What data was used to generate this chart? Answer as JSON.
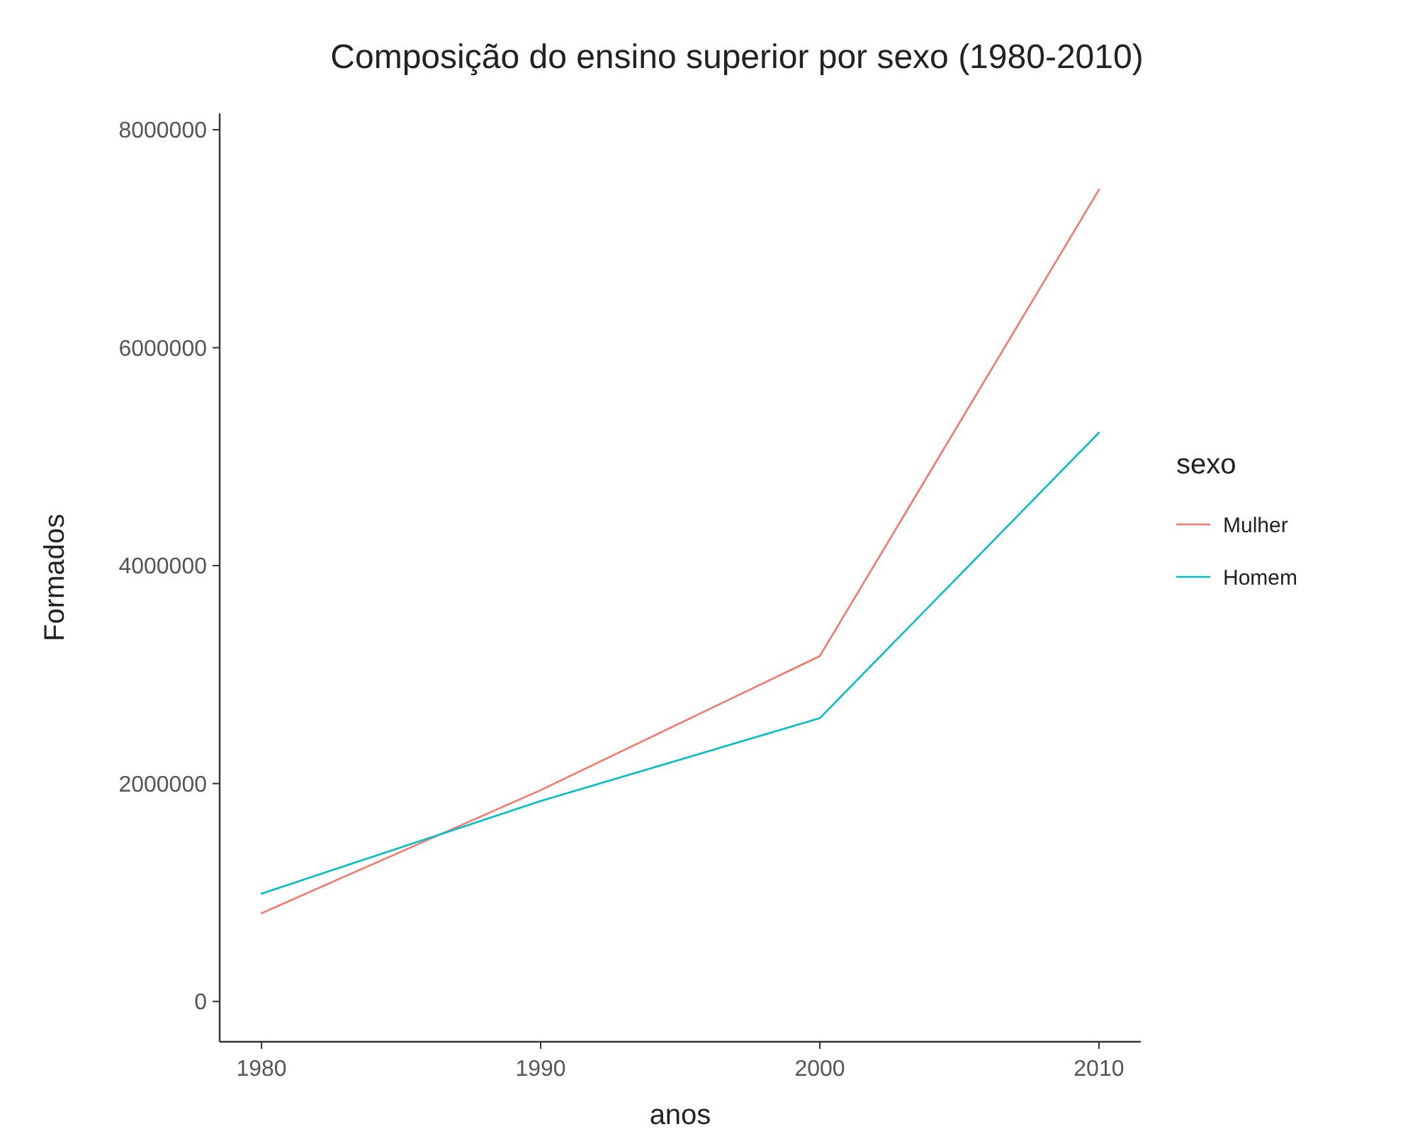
{
  "chart_data": {
    "type": "line",
    "title": "Composição do ensino superior por sexo (1980-2010)",
    "xlabel": "anos",
    "ylabel": "Formados",
    "legend_title": "sexo",
    "legend": "right",
    "grid": false,
    "x": [
      1980,
      1990,
      2000,
      2010
    ],
    "series": [
      {
        "name": "Mulher",
        "color": "#f8766d",
        "values": [
          810000,
          1940000,
          3170000,
          7450000
        ]
      },
      {
        "name": "Homem",
        "color": "#00bfc4",
        "values": [
          990000,
          1840000,
          2600000,
          5220000
        ]
      }
    ],
    "xlim": [
      1978.5,
      2011.5
    ],
    "xticks": [
      1980,
      1990,
      2000,
      2010
    ],
    "ylim": [
      -370000,
      8150000
    ],
    "yticks": [
      0,
      2000000,
      4000000,
      6000000,
      8000000
    ]
  }
}
